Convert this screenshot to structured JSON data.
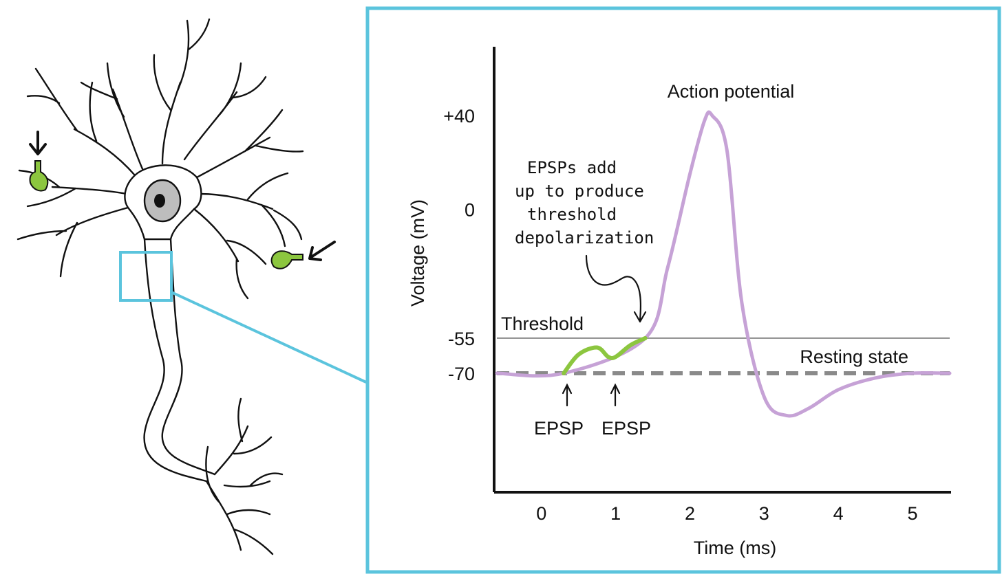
{
  "colors": {
    "frame": "#5bc4dd",
    "membrane_potential": "#c6a2d6",
    "epsp": "#8cc63f",
    "threshold_line": "#8a8a8a",
    "resting_line": "#8a8a8a",
    "nucleus": "#bdbdbd",
    "synapse": "#8cc63f",
    "ink": "#111111"
  },
  "icons": [
    "arrow-down-icon",
    "arrow-left-icon",
    "arrow-up-icon"
  ],
  "chart_data": {
    "type": "line",
    "xlabel": "Time (ms)",
    "ylabel": "Voltage (mV)",
    "xlim": [
      -0.6,
      5.5
    ],
    "ylim": [
      -100,
      55
    ],
    "x_ticks": [
      "0",
      "1",
      "2",
      "3",
      "4",
      "5"
    ],
    "y_ticks": [
      "+40",
      "0",
      "-55",
      "-70"
    ],
    "threshold": {
      "value": -55,
      "label": "Threshold"
    },
    "resting": {
      "value": -70,
      "label": "Resting state"
    },
    "series": [
      {
        "x": [
          -0.6,
          0.3,
          1.4,
          1.7,
          2.0,
          2.2,
          2.3,
          2.5,
          2.7,
          3.0,
          3.3,
          3.6,
          4.0,
          4.5,
          5.0,
          5.5
        ],
        "y": [
          -70,
          -70,
          -55,
          -25,
          15,
          38,
          40,
          25,
          -40,
          -80,
          -88,
          -85,
          -77,
          -72,
          -70,
          -70
        ]
      },
      {
        "x": [
          0.3,
          0.5,
          0.75,
          0.9,
          1.0,
          1.2,
          1.4
        ],
        "y": [
          -70,
          -62,
          -59,
          -63,
          -63,
          -58,
          -55
        ]
      }
    ],
    "annotations": {
      "peak": "Action potential",
      "note_lines": [
        "EPSPs add",
        "up to produce",
        "threshold",
        "depolarization"
      ],
      "epsp_labels": [
        "EPSP",
        "EPSP"
      ]
    }
  }
}
